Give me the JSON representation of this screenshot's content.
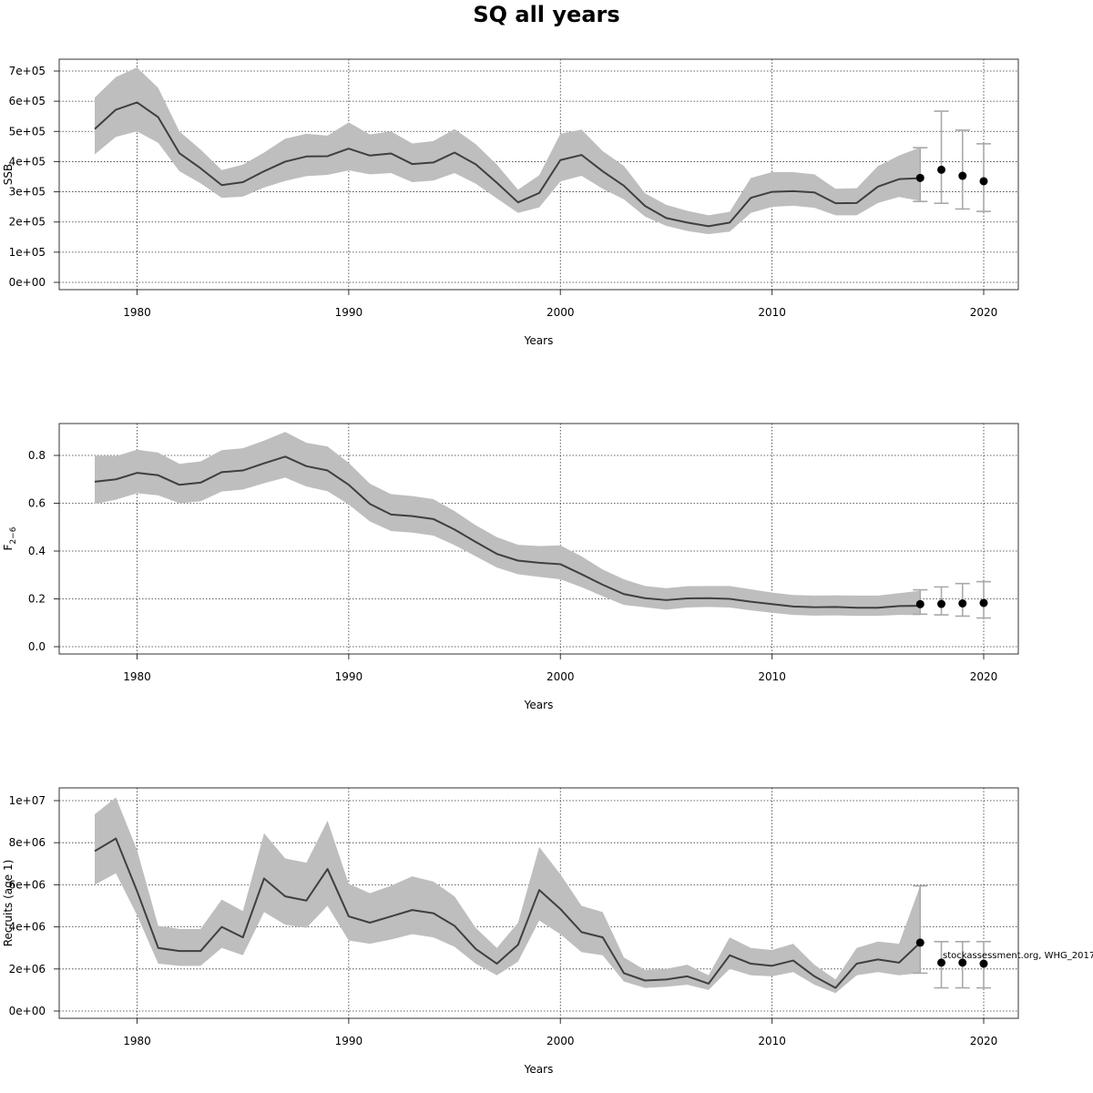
{
  "title": "SQ all years",
  "note": "stockassessment.org, WHG_2017",
  "colors": {
    "band": "#bebebe",
    "line": "#3f3f3f",
    "point": "#000000",
    "errorbar": "#a9a9a9"
  },
  "chart_data": [
    {
      "type": "area",
      "name": "ssb",
      "xlabel": "Years",
      "ylabel": "SSB",
      "xlim": [
        1978,
        2020
      ],
      "ylim": [
        0,
        700000
      ],
      "xticks": [
        "1980",
        "1990",
        "2000",
        "2010",
        "2020"
      ],
      "yticks": [
        {
          "value": 0,
          "label": "0e+00"
        },
        {
          "value": 100000,
          "label": "1e+05"
        },
        {
          "value": 200000,
          "label": "2e+05"
        },
        {
          "value": 300000,
          "label": "3e+05"
        },
        {
          "value": 400000,
          "label": "4e+05"
        },
        {
          "value": 500000,
          "label": "5e+05"
        },
        {
          "value": 600000,
          "label": "6e+05"
        },
        {
          "value": 700000,
          "label": "7e+05"
        }
      ],
      "grid": true,
      "x": [
        1978,
        1979,
        1980,
        1981,
        1982,
        1983,
        1984,
        1985,
        1986,
        1987,
        1988,
        1989,
        1990,
        1991,
        1992,
        1993,
        1994,
        1995,
        1996,
        1997,
        1998,
        1999,
        2000,
        2001,
        2002,
        2003,
        2004,
        2005,
        2006,
        2007,
        2008,
        2009,
        2010,
        2011,
        2012,
        2013,
        2014,
        2015,
        2016,
        2017
      ],
      "estimate": [
        508000,
        572000,
        596000,
        547000,
        428000,
        378000,
        322000,
        332000,
        368000,
        400000,
        417000,
        418000,
        443000,
        420000,
        427000,
        392000,
        397000,
        430000,
        391000,
        330000,
        265000,
        296000,
        405000,
        422000,
        368000,
        320000,
        253000,
        213000,
        198000,
        186000,
        198000,
        280000,
        300000,
        302000,
        298000,
        262000,
        263000,
        317000,
        342000,
        345000
      ],
      "lower": [
        424000,
        482000,
        500000,
        462000,
        368000,
        328000,
        280000,
        284000,
        314000,
        336000,
        352000,
        356000,
        371000,
        358000,
        362000,
        332000,
        337000,
        362000,
        327000,
        278000,
        230000,
        248000,
        334000,
        353000,
        310000,
        275000,
        218000,
        187000,
        170000,
        160000,
        168000,
        230000,
        250000,
        254000,
        247000,
        222000,
        222000,
        263000,
        283000,
        270000
      ],
      "upper": [
        612000,
        680000,
        712000,
        644000,
        500000,
        440000,
        372000,
        390000,
        430000,
        476000,
        492000,
        486000,
        530000,
        490000,
        500000,
        460000,
        468000,
        508000,
        458000,
        390000,
        307000,
        355000,
        492000,
        506000,
        435000,
        386000,
        295000,
        257000,
        237000,
        222000,
        234000,
        346000,
        365000,
        365000,
        358000,
        310000,
        312000,
        385000,
        420000,
        447000
      ],
      "forecast": [
        {
          "year": 2017,
          "value": 346000,
          "low": 268000,
          "high": 446000
        },
        {
          "year": 2018,
          "value": 373000,
          "low": 262000,
          "high": 567000
        },
        {
          "year": 2019,
          "value": 353000,
          "low": 243000,
          "high": 504000
        },
        {
          "year": 2020,
          "value": 335000,
          "low": 235000,
          "high": 459000
        }
      ]
    },
    {
      "type": "area",
      "name": "fbar",
      "xlabel": "Years",
      "ylabel": "F",
      "ylabel_sub": "2−6",
      "xlim": [
        1978,
        2020
      ],
      "ylim": [
        0,
        0.8
      ],
      "xticks": [
        "1980",
        "1990",
        "2000",
        "2010",
        "2020"
      ],
      "yticks": [
        {
          "value": 0,
          "label": "0.0"
        },
        {
          "value": 0.2,
          "label": "0.2"
        },
        {
          "value": 0.4,
          "label": "0.4"
        },
        {
          "value": 0.6,
          "label": "0.6"
        },
        {
          "value": 0.8,
          "label": "0.8"
        }
      ],
      "grid": true,
      "x": [
        1978,
        1979,
        1980,
        1981,
        1982,
        1983,
        1984,
        1985,
        1986,
        1987,
        1988,
        1989,
        1990,
        1991,
        1992,
        1993,
        1994,
        1995,
        1996,
        1997,
        1998,
        1999,
        2000,
        2001,
        2002,
        2003,
        2004,
        2005,
        2006,
        2007,
        2008,
        2009,
        2010,
        2011,
        2012,
        2013,
        2014,
        2015,
        2016,
        2017
      ],
      "estimate": [
        0.69,
        0.7,
        0.727,
        0.717,
        0.677,
        0.686,
        0.73,
        0.737,
        0.767,
        0.795,
        0.755,
        0.737,
        0.677,
        0.597,
        0.553,
        0.546,
        0.534,
        0.49,
        0.438,
        0.388,
        0.36,
        0.351,
        0.345,
        0.303,
        0.259,
        0.22,
        0.203,
        0.195,
        0.202,
        0.203,
        0.2,
        0.188,
        0.178,
        0.168,
        0.165,
        0.166,
        0.163,
        0.163,
        0.17,
        0.171
      ],
      "lower": [
        0.597,
        0.615,
        0.642,
        0.633,
        0.6,
        0.608,
        0.649,
        0.657,
        0.684,
        0.707,
        0.67,
        0.65,
        0.595,
        0.524,
        0.484,
        0.477,
        0.465,
        0.425,
        0.378,
        0.331,
        0.303,
        0.292,
        0.282,
        0.249,
        0.211,
        0.175,
        0.165,
        0.155,
        0.164,
        0.166,
        0.164,
        0.152,
        0.142,
        0.133,
        0.13,
        0.131,
        0.129,
        0.129,
        0.133,
        0.132
      ],
      "upper": [
        0.8,
        0.797,
        0.824,
        0.812,
        0.765,
        0.775,
        0.822,
        0.83,
        0.862,
        0.898,
        0.853,
        0.837,
        0.769,
        0.682,
        0.638,
        0.63,
        0.617,
        0.567,
        0.508,
        0.458,
        0.426,
        0.421,
        0.424,
        0.378,
        0.323,
        0.282,
        0.254,
        0.245,
        0.253,
        0.254,
        0.254,
        0.24,
        0.226,
        0.216,
        0.214,
        0.215,
        0.214,
        0.214,
        0.224,
        0.234
      ],
      "forecast": [
        {
          "year": 2017,
          "value": 0.178,
          "low": 0.136,
          "high": 0.238
        },
        {
          "year": 2018,
          "value": 0.179,
          "low": 0.133,
          "high": 0.25
        },
        {
          "year": 2019,
          "value": 0.181,
          "low": 0.128,
          "high": 0.264
        },
        {
          "year": 2020,
          "value": 0.183,
          "low": 0.12,
          "high": 0.272
        }
      ]
    },
    {
      "type": "area",
      "name": "recruits",
      "xlabel": "Years",
      "ylabel": "Recruits (age 1)",
      "xlim": [
        1978,
        2020
      ],
      "ylim": [
        0,
        10000000
      ],
      "xticks": [
        "1980",
        "1990",
        "2000",
        "2010",
        "2020"
      ],
      "yticks": [
        {
          "value": 0,
          "label": "0e+00"
        },
        {
          "value": 2000000,
          "label": "2e+06"
        },
        {
          "value": 4000000,
          "label": "4e+06"
        },
        {
          "value": 6000000,
          "label": "6e+06"
        },
        {
          "value": 8000000,
          "label": "8e+06"
        },
        {
          "value": 10000000,
          "label": "1e+07"
        }
      ],
      "grid": true,
      "x": [
        1978,
        1979,
        1980,
        1981,
        1982,
        1983,
        1984,
        1985,
        1986,
        1987,
        1988,
        1989,
        1990,
        1991,
        1992,
        1993,
        1994,
        1995,
        1996,
        1997,
        1998,
        1999,
        2000,
        2001,
        2002,
        2003,
        2004,
        2005,
        2006,
        2007,
        2008,
        2009,
        2010,
        2011,
        2012,
        2013,
        2014,
        2015,
        2016,
        2017
      ],
      "estimate": [
        7600000,
        8200000,
        5700000,
        3000000,
        2850000,
        2850000,
        4000000,
        3500000,
        6300000,
        5450000,
        5250000,
        6750000,
        4500000,
        4200000,
        4500000,
        4800000,
        4650000,
        4050000,
        2950000,
        2250000,
        3150000,
        5750000,
        4850000,
        3750000,
        3500000,
        1800000,
        1450000,
        1500000,
        1650000,
        1300000,
        2650000,
        2250000,
        2150000,
        2400000,
        1650000,
        1100000,
        2250000,
        2450000,
        2300000,
        3250000
      ],
      "lower": [
        6000000,
        6550000,
        4550000,
        2250000,
        2150000,
        2150000,
        3000000,
        2650000,
        4700000,
        4100000,
        3950000,
        5000000,
        3350000,
        3200000,
        3400000,
        3650000,
        3500000,
        3050000,
        2250000,
        1700000,
        2350000,
        4300000,
        3650000,
        2800000,
        2650000,
        1400000,
        1100000,
        1150000,
        1250000,
        1000000,
        2000000,
        1700000,
        1650000,
        1850000,
        1250000,
        850000,
        1700000,
        1850000,
        1700000,
        1800000
      ],
      "upper": [
        9350000,
        10150000,
        7650000,
        4050000,
        3900000,
        3900000,
        5300000,
        4750000,
        8450000,
        7250000,
        7050000,
        9050000,
        6050000,
        5600000,
        5950000,
        6400000,
        6150000,
        5450000,
        3950000,
        3000000,
        4200000,
        7800000,
        6500000,
        5000000,
        4700000,
        2550000,
        1950000,
        2000000,
        2200000,
        1700000,
        3500000,
        3000000,
        2900000,
        3200000,
        2200000,
        1500000,
        3000000,
        3300000,
        3200000,
        5950000
      ],
      "forecast": [
        {
          "year": 2017,
          "value": 3250000,
          "low": 1800000,
          "high": 5950000
        },
        {
          "year": 2018,
          "value": 2300000,
          "low": 1100000,
          "high": 3300000
        },
        {
          "year": 2019,
          "value": 2300000,
          "low": 1100000,
          "high": 3300000
        },
        {
          "year": 2020,
          "value": 2250000,
          "low": 1100000,
          "high": 3300000
        }
      ]
    }
  ]
}
